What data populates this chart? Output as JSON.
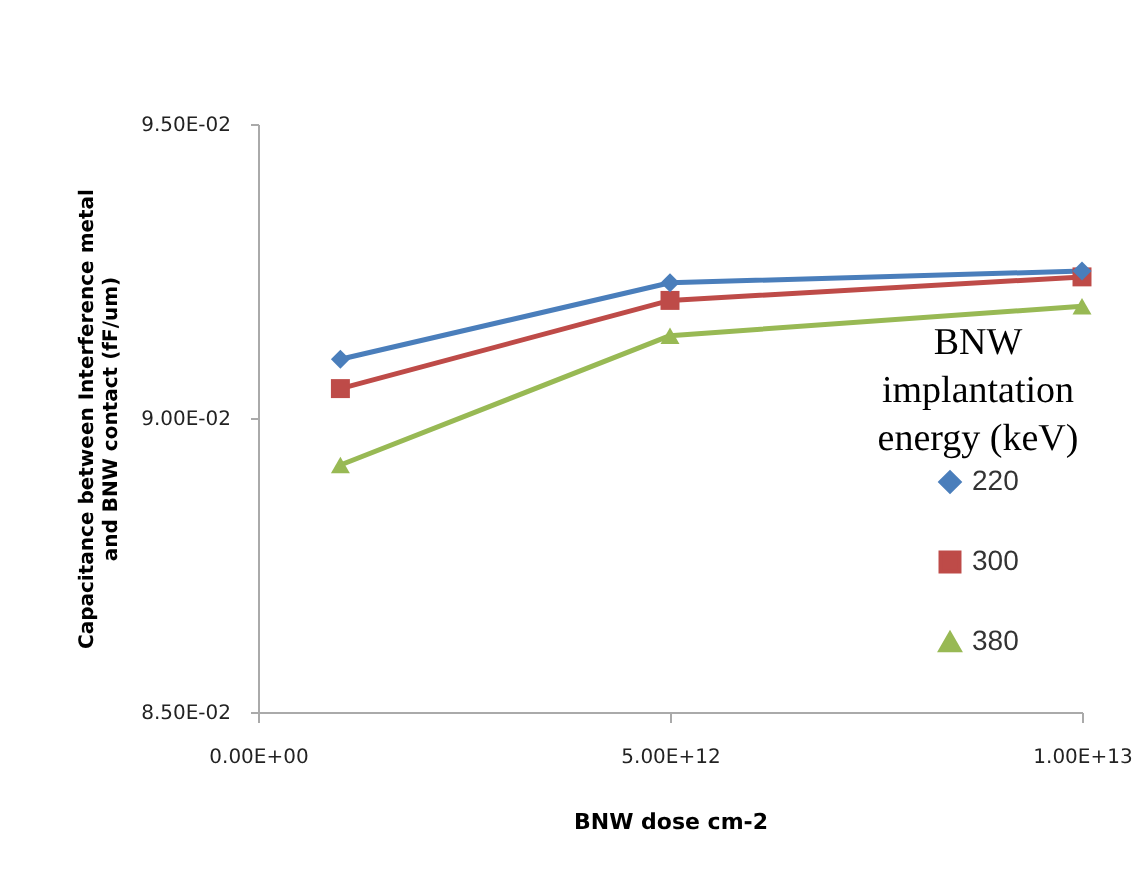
{
  "chart_data": {
    "type": "line",
    "xlabel": "BNW dose cm-2",
    "ylabel": "Capacitance between Interference metal and BNW contact (fF/um)",
    "legend_title": "BNW implantation energy (keV)",
    "legend": "right",
    "x": [
      1000000000000.0,
      5000000000000.0,
      10000000000000.0
    ],
    "xlim": [
      0,
      10000000000000.0
    ],
    "xticks": [
      {
        "value": 0,
        "label": "0.00E+00"
      },
      {
        "value": 5000000000000.0,
        "label": "5.00E+12"
      },
      {
        "value": 10000000000000.0,
        "label": "1.00E+13"
      }
    ],
    "ylim": [
      0.085,
      0.095
    ],
    "yticks": [
      {
        "value": 0.085,
        "label": "8.50E-02"
      },
      {
        "value": 0.09,
        "label": "9.00E-02"
      },
      {
        "value": 0.095,
        "label": "9.50E-02"
      }
    ],
    "grid": false,
    "series": [
      {
        "name": "220",
        "color": "#4a7ebb",
        "marker": "diamond",
        "values": [
          0.091,
          0.0923,
          0.0925
        ]
      },
      {
        "name": "300",
        "color": "#be4b48",
        "marker": "square",
        "values": [
          0.0905,
          0.092,
          0.0924
        ]
      },
      {
        "name": "380",
        "color": "#98b954",
        "marker": "triangle",
        "values": [
          0.0892,
          0.0914,
          0.0919
        ]
      }
    ]
  }
}
